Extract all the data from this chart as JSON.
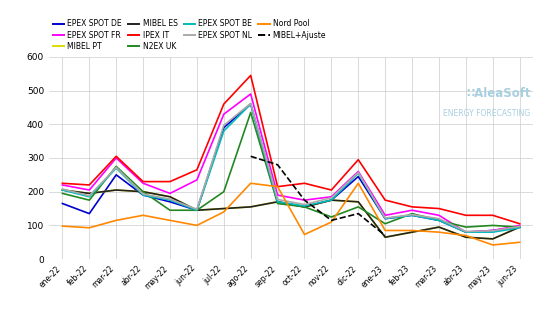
{
  "x_labels": [
    "ene-22",
    "feb-22",
    "mar-22",
    "abr-22",
    "may-22",
    "jun-22",
    "jul-22",
    "ago-22",
    "sep-22",
    "oct-22",
    "nov-22",
    "dic-22",
    "ene-23",
    "feb-23",
    "mar-23",
    "abr-23",
    "may-23",
    "jun-23"
  ],
  "series": {
    "EPEX SPOT DE": {
      "color": "#0000cc",
      "linestyle": "-",
      "linewidth": 1.2,
      "values": [
        165,
        135,
        250,
        190,
        170,
        145,
        390,
        460,
        170,
        155,
        175,
        245,
        120,
        130,
        115,
        80,
        85,
        95
      ]
    },
    "EPEX SPOT FR": {
      "color": "#ff00ff",
      "linestyle": "-",
      "linewidth": 1.2,
      "values": [
        220,
        205,
        300,
        225,
        195,
        235,
        430,
        490,
        190,
        175,
        185,
        260,
        130,
        145,
        130,
        80,
        85,
        100
      ]
    },
    "MIBEL PT": {
      "color": "#dddd00",
      "linestyle": "-",
      "linewidth": 1.2,
      "values": [
        205,
        195,
        205,
        200,
        185,
        145,
        150,
        155,
        170,
        155,
        175,
        170,
        65,
        80,
        95,
        65,
        60,
        95
      ]
    },
    "MIBEL ES": {
      "color": "#222222",
      "linestyle": "-",
      "linewidth": 1.2,
      "values": [
        205,
        195,
        205,
        200,
        185,
        145,
        150,
        155,
        170,
        155,
        175,
        170,
        65,
        80,
        95,
        65,
        60,
        95
      ]
    },
    "IPEX IT": {
      "color": "#ff0000",
      "linestyle": "-",
      "linewidth": 1.2,
      "values": [
        225,
        220,
        305,
        230,
        230,
        265,
        460,
        545,
        215,
        225,
        205,
        295,
        175,
        155,
        150,
        130,
        130,
        105
      ]
    },
    "N2EX UK": {
      "color": "#228822",
      "linestyle": "-",
      "linewidth": 1.2,
      "values": [
        195,
        175,
        275,
        200,
        145,
        145,
        200,
        435,
        165,
        155,
        125,
        155,
        105,
        135,
        115,
        95,
        100,
        95
      ]
    },
    "EPEX SPOT BE": {
      "color": "#00bbbb",
      "linestyle": "-",
      "linewidth": 1.2,
      "values": [
        205,
        185,
        270,
        190,
        175,
        145,
        380,
        460,
        170,
        158,
        175,
        255,
        120,
        130,
        115,
        80,
        80,
        93
      ]
    },
    "EPEX SPOT NL": {
      "color": "#aaaaaa",
      "linestyle": "-",
      "linewidth": 1.2,
      "values": [
        208,
        188,
        272,
        193,
        178,
        148,
        397,
        462,
        177,
        162,
        182,
        257,
        122,
        132,
        120,
        82,
        84,
        97
      ]
    },
    "Nord Pool": {
      "color": "#ff8800",
      "linestyle": "-",
      "linewidth": 1.2,
      "values": [
        98,
        93,
        115,
        130,
        115,
        100,
        140,
        225,
        215,
        73,
        110,
        225,
        85,
        85,
        80,
        70,
        42,
        50
      ]
    },
    "MIBEL+Ajuste": {
      "color": "#000000",
      "linestyle": "--",
      "linewidth": 1.2,
      "values": [
        null,
        null,
        null,
        null,
        null,
        null,
        null,
        305,
        280,
        175,
        115,
        135,
        70,
        null,
        null,
        null,
        null,
        null
      ]
    }
  },
  "ylim": [
    0,
    600
  ],
  "yticks": [
    0,
    100,
    200,
    300,
    400,
    500,
    600
  ],
  "background_color": "#ffffff",
  "grid_color": "#cccccc",
  "legend_rows": [
    [
      "EPEX SPOT DE",
      "EPEX SPOT FR",
      "MIBEL PT",
      "MIBEL ES"
    ],
    [
      "IPEX IT",
      "N2EX UK",
      "EPEX SPOT BE",
      "EPEX SPOT NL"
    ],
    [
      "Nord Pool",
      "MIBEL+Ajuste"
    ]
  ],
  "aleasoft_text": "AleaSoft",
  "aleasoft_sub": "ENERGY FORECASTING",
  "aleasoft_color": "#a8cfe0",
  "aleasoft_dot_color": "#a8cfe0"
}
